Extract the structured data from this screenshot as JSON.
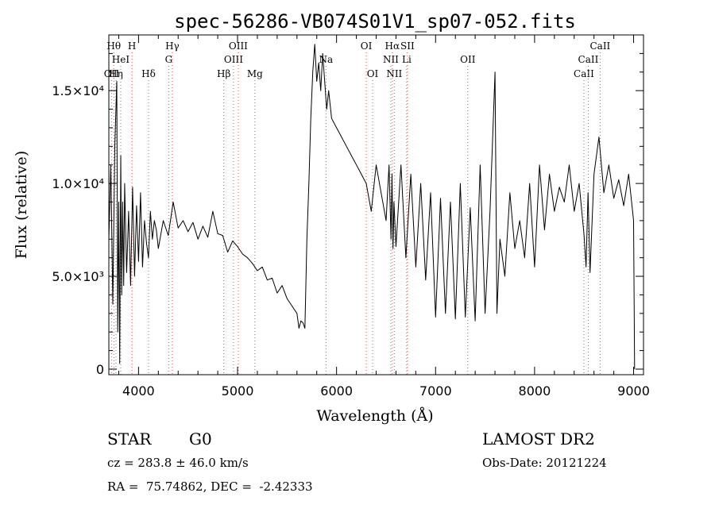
{
  "chart_data": {
    "type": "line",
    "title": "spec-56286-VB074S01V1_sp07-052.fits",
    "xlabel": "Wavelength (Å)",
    "ylabel": "Flux (relative)",
    "xlim": [
      3700,
      9100
    ],
    "ylim": [
      -300,
      18000
    ],
    "x_ticks": [
      {
        "value": 4000,
        "label": "4000"
      },
      {
        "value": 5000,
        "label": "5000"
      },
      {
        "value": 6000,
        "label": "6000"
      },
      {
        "value": 7000,
        "label": "7000"
      },
      {
        "value": 8000,
        "label": "8000"
      },
      {
        "value": 9000,
        "label": "9000"
      }
    ],
    "y_ticks": [
      {
        "value": 0,
        "label": "0"
      },
      {
        "value": 5000,
        "label": "5.0×10³"
      },
      {
        "value": 10000,
        "label": "1.0×10⁴"
      },
      {
        "value": 15000,
        "label": "1.5×10⁴"
      }
    ],
    "grid": false,
    "legend": "none",
    "line_color": "#000000",
    "marker_color": "#e05050",
    "series": [
      {
        "x": [
          3700,
          3720,
          3740,
          3760,
          3780,
          3790,
          3800,
          3810,
          3820,
          3830,
          3840,
          3850,
          3860,
          3880,
          3900,
          3920,
          3940,
          3960,
          3980,
          4000,
          4020,
          4040,
          4060,
          4080,
          4100,
          4120,
          4140,
          4160,
          4180,
          4200,
          4250,
          4300,
          4350,
          4400,
          4450,
          4500,
          4550,
          4600,
          4650,
          4700,
          4750,
          4800,
          4850,
          4900,
          4950,
          5000,
          5050,
          5100,
          5150,
          5200,
          5250,
          5300,
          5350,
          5400,
          5450,
          5500,
          5550,
          5600,
          5620,
          5640,
          5660,
          5680,
          5700,
          5720,
          5740,
          5760,
          5780,
          5800,
          5820,
          5840,
          5860,
          5880,
          5900,
          5920,
          5950,
          6000,
          6050,
          6100,
          6150,
          6200,
          6250,
          6300,
          6350,
          6400,
          6450,
          6500,
          6530,
          6550,
          6560,
          6570,
          6580,
          6600,
          6650,
          6700,
          6750,
          6800,
          6850,
          6900,
          6950,
          7000,
          7050,
          7100,
          7150,
          7200,
          7250,
          7300,
          7350,
          7400,
          7450,
          7500,
          7550,
          7600,
          7620,
          7650,
          7700,
          7750,
          7800,
          7850,
          7900,
          7950,
          8000,
          8050,
          8100,
          8150,
          8200,
          8250,
          8300,
          8350,
          8400,
          8450,
          8500,
          8520,
          8540,
          8560,
          8600,
          8650,
          8700,
          8750,
          8800,
          8850,
          8900,
          8950,
          9000,
          9010
        ],
        "y": [
          7000,
          11000,
          3500,
          12000,
          15500,
          2000,
          9000,
          300,
          11500,
          4000,
          9000,
          4500,
          10000,
          5200,
          8500,
          4500,
          9800,
          5000,
          8800,
          5800,
          9500,
          5500,
          8000,
          6800,
          6000,
          8500,
          7000,
          8000,
          7500,
          6500,
          8000,
          7200,
          9000,
          7600,
          8000,
          7400,
          7900,
          7000,
          7700,
          7100,
          8500,
          7300,
          7200,
          6300,
          6900,
          6600,
          6200,
          6000,
          5700,
          5300,
          5500,
          4800,
          4900,
          4100,
          4500,
          3800,
          3400,
          3000,
          2200,
          2600,
          2500,
          2200,
          7000,
          10000,
          13500,
          16000,
          17500,
          15500,
          16500,
          15000,
          17000,
          15500,
          14000,
          15000,
          13500,
          13000,
          12500,
          12000,
          11500,
          11000,
          10500,
          10000,
          8500,
          11000,
          9500,
          8000,
          11000,
          7000,
          10500,
          6500,
          9000,
          6600,
          11000,
          6000,
          10500,
          5500,
          10000,
          4800,
          9500,
          2800,
          9200,
          3000,
          9000,
          2700,
          10000,
          2800,
          8700,
          2600,
          11000,
          3000,
          8500,
          16000,
          3000,
          7000,
          5000,
          9500,
          6500,
          8000,
          6000,
          10000,
          5500,
          11000,
          7500,
          10500,
          8500,
          9800,
          9000,
          11000,
          8500,
          10000,
          7200,
          5500,
          9500,
          5200,
          10500,
          12500,
          9500,
          11000,
          9200,
          10200,
          8800,
          10500,
          8000,
          0
        ]
      }
    ],
    "line_markers": [
      {
        "wl": 3727,
        "label": "OII",
        "row": 3
      },
      {
        "wl": 3750,
        "label": "Hθ",
        "row": 1
      },
      {
        "wl": 3772,
        "label": "Hη",
        "row": 3
      },
      {
        "wl": 3820,
        "label": "HeI",
        "row": 2
      },
      {
        "wl": 3934,
        "label": "H",
        "row": 1
      },
      {
        "wl": 4101,
        "label": "Hδ",
        "row": 3
      },
      {
        "wl": 4305,
        "label": "G",
        "row": 2
      },
      {
        "wl": 4341,
        "label": "Hγ",
        "row": 1
      },
      {
        "wl": 4861,
        "label": "Hβ",
        "row": 3
      },
      {
        "wl": 4959,
        "label": "OIII",
        "row": 2
      },
      {
        "wl": 5007,
        "label": "OIII",
        "row": 1
      },
      {
        "wl": 5175,
        "label": "Mg",
        "row": 3
      },
      {
        "wl": 5893,
        "label": "Na",
        "row": 2
      },
      {
        "wl": 6300,
        "label": "OI",
        "row": 1
      },
      {
        "wl": 6364,
        "label": "OI",
        "row": 3
      },
      {
        "wl": 6548,
        "label": "NII",
        "row": 2
      },
      {
        "wl": 6563,
        "label": "Hα",
        "row": 1
      },
      {
        "wl": 6583,
        "label": "NII",
        "row": 3
      },
      {
        "wl": 6716,
        "label": "SII",
        "row": 1
      },
      {
        "wl": 6708,
        "label": "Li",
        "row": 2
      },
      {
        "wl": 7325,
        "label": "OII",
        "row": 2
      },
      {
        "wl": 8498,
        "label": "CaII",
        "row": 3
      },
      {
        "wl": 8542,
        "label": "CaII",
        "row": 2
      },
      {
        "wl": 8662,
        "label": "CaII",
        "row": 1
      }
    ]
  },
  "info": {
    "object_class": "STAR",
    "subclass": "G0",
    "survey": "LAMOST DR2",
    "redshift_line": "cz = 283.8 ± 46.0 km/s",
    "obs_date_line": "Obs-Date: 20121224",
    "coords_line": "RA =  75.74862, DEC =  -2.42333"
  }
}
